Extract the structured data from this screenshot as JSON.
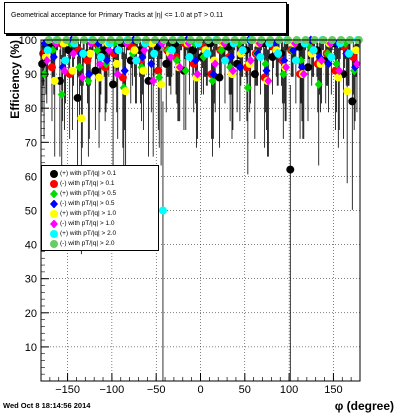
{
  "chart_data": {
    "type": "scatter",
    "title": "Geometrical acceptance for Primary Tracks at |η| <= 1.0 at pT > 0.11",
    "xlabel": "φ (degree)",
    "ylabel": "Efficiency (%)",
    "xlim": [
      -180,
      180
    ],
    "ylim": [
      0,
      100
    ],
    "x_ticks": [
      -150,
      -100,
      -50,
      0,
      50,
      100,
      150
    ],
    "y_ticks": [
      10,
      20,
      30,
      40,
      50,
      60,
      70,
      80,
      90,
      100
    ],
    "grid": true,
    "legend_position": "left-middle",
    "x": [
      -175,
      -165,
      -155,
      -145,
      -135,
      -125,
      -115,
      -105,
      -95,
      -85,
      -75,
      -65,
      -55,
      -45,
      -35,
      -25,
      -15,
      -5,
      5,
      15,
      25,
      35,
      45,
      55,
      65,
      75,
      85,
      95,
      105,
      115,
      125,
      135,
      145,
      155,
      165,
      175
    ],
    "series": [
      {
        "name": "(+) with pT/|q| > 0.1",
        "color": "#000000",
        "marker": "circle",
        "values": [
          93,
          98,
          88,
          97,
          83,
          96,
          91,
          97,
          87,
          99,
          94,
          97,
          88,
          98,
          93,
          99,
          91,
          97,
          95,
          99,
          89,
          98,
          93,
          97,
          90,
          99,
          95,
          96,
          62,
          98,
          92,
          97,
          94,
          99,
          90,
          82
        ]
      },
      {
        "name": "(-) with pT/|q| > 0.1",
        "color": "#ff0000",
        "marker": "circle",
        "values": [
          96,
          92,
          99,
          90,
          97,
          94,
          99,
          92,
          96,
          89,
          98,
          94,
          99,
          91,
          97,
          95,
          99,
          93,
          98,
          90,
          97,
          95,
          99,
          92,
          96,
          89,
          98,
          94,
          97,
          90,
          99,
          93,
          96,
          91,
          98,
          95
        ]
      },
      {
        "name": "(+) with pT/|q| > 0.5",
        "color": "#00dd00",
        "marker": "diamond",
        "values": [
          90,
          97,
          84,
          99,
          92,
          88,
          97,
          93,
          99,
          86,
          96,
          92,
          99,
          89,
          97,
          94,
          91,
          99,
          95,
          88,
          97,
          92,
          99,
          86,
          96,
          93,
          99,
          90,
          97,
          94,
          98,
          87,
          96,
          93,
          99,
          91
        ]
      },
      {
        "name": "(-) with pT/|q| > 0.5",
        "color": "#0000ff",
        "marker": "diamond",
        "values": [
          99,
          95,
          92,
          100,
          96,
          90,
          99,
          94,
          97,
          91,
          100,
          95,
          93,
          99,
          96,
          92,
          100,
          94,
          97,
          90,
          99,
          95,
          92,
          100,
          96,
          91,
          99,
          94,
          97,
          92,
          100,
          95,
          93,
          99,
          96,
          92
        ]
      },
      {
        "name": "(+) with pT/|q| > 1.0",
        "color": "#ffff00",
        "marker": "circle",
        "values": [
          95,
          88,
          99,
          91,
          77,
          96,
          89,
          99,
          93,
          85,
          97,
          91,
          99,
          87,
          96,
          92,
          99,
          89,
          97,
          94,
          99,
          90,
          96,
          93,
          99,
          88,
          97,
          92,
          99,
          90,
          96,
          93,
          99,
          89,
          85,
          97
        ]
      },
      {
        "name": "(-) with pT/|q| > 1.0",
        "color": "#ff00ff",
        "marker": "diamond",
        "values": [
          94,
          99,
          91,
          96,
          89,
          99,
          93,
          97,
          90,
          99,
          94,
          97,
          88,
          99,
          95,
          92,
          99,
          90,
          96,
          93,
          99,
          91,
          97,
          94,
          99,
          88,
          96,
          92,
          99,
          90,
          97,
          94,
          99,
          91,
          96,
          93
        ]
      },
      {
        "name": "(+) with pT/|q| > 2.0",
        "color": "#00ffff",
        "marker": "circle",
        "values": [
          97,
          100,
          94,
          99,
          96,
          100,
          95,
          99,
          97,
          100,
          94,
          99,
          96,
          50,
          97,
          100,
          95,
          99,
          96,
          100,
          94,
          99,
          97,
          100,
          95,
          99,
          96,
          100,
          94,
          99,
          97,
          100,
          95,
          99,
          96,
          100
        ]
      },
      {
        "name": "(-) with pT/|q| > 2.0",
        "color": "#66cc66",
        "marker": "circle",
        "values": [
          100,
          100,
          100,
          100,
          100,
          100,
          100,
          100,
          100,
          100,
          100,
          100,
          100,
          100,
          100,
          100,
          100,
          100,
          100,
          100,
          100,
          100,
          100,
          100,
          100,
          100,
          100,
          100,
          100,
          100,
          100,
          100,
          100,
          100,
          100,
          100
        ]
      }
    ]
  },
  "timestamp": "Wed Oct  8 18:14:56 2014"
}
